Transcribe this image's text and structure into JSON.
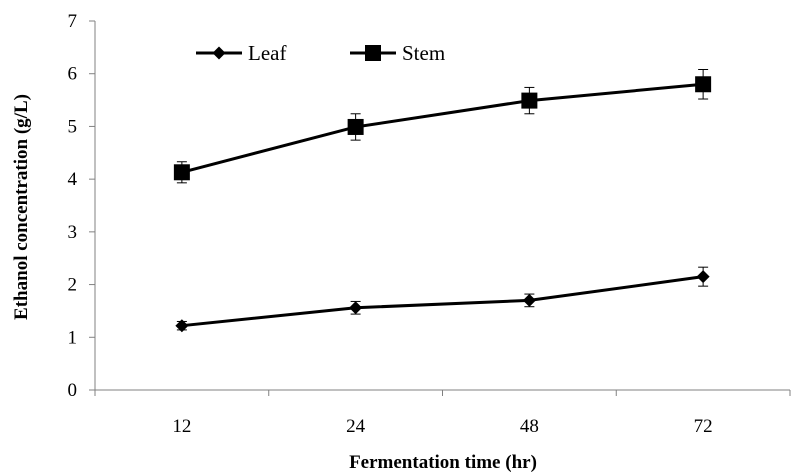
{
  "chart_data": {
    "type": "line",
    "categories": [
      "12",
      "24",
      "48",
      "72"
    ],
    "xlabel": "Fermentation time (hr)",
    "ylabel": "Ethanol concentration (g/L)",
    "ylim": [
      0,
      7
    ],
    "yticks": [
      "0",
      "1",
      "2",
      "3",
      "4",
      "5",
      "6",
      "7"
    ],
    "grid": false,
    "legend_position": "top-left",
    "series": [
      {
        "name": "Leaf",
        "marker": "diamond",
        "color": "#000000",
        "values": [
          1.22,
          1.56,
          1.7,
          2.15
        ],
        "errors": [
          0.08,
          0.12,
          0.12,
          0.18
        ]
      },
      {
        "name": "Stem",
        "marker": "square",
        "color": "#000000",
        "values": [
          4.13,
          4.99,
          5.49,
          5.8
        ],
        "errors": [
          0.2,
          0.25,
          0.25,
          0.28
        ]
      }
    ]
  }
}
